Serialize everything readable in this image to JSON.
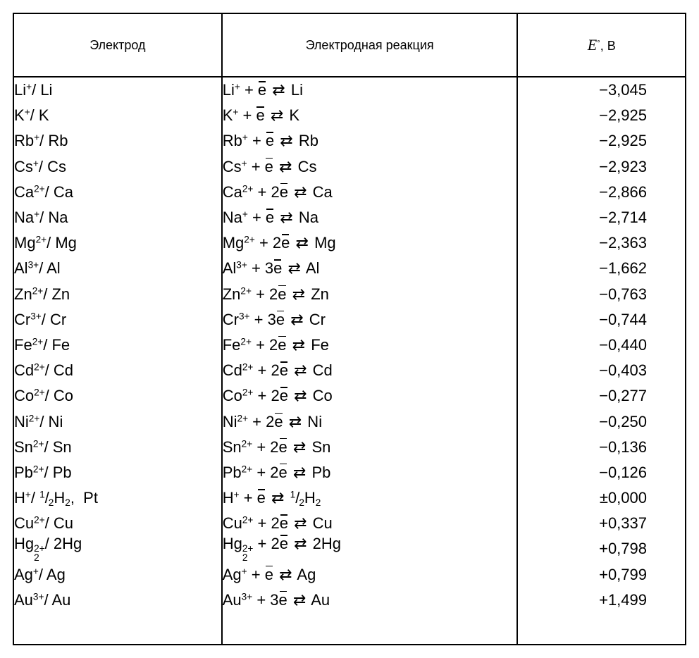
{
  "table": {
    "type": "table",
    "border_color": "#000000",
    "background_color": "#ffffff",
    "text_color": "#000000",
    "font_family": "Arial",
    "header_fontsize_pt": 14,
    "body_fontsize_pt": 16,
    "column_widths_pct": [
      31,
      44,
      25
    ],
    "columns": {
      "electrode": "Электрод",
      "reaction": "Электродная реакция",
      "potential_prefix": "E",
      "potential_suffix": ", В"
    },
    "rows": [
      {
        "electrode": {
          "ion": "Li",
          "charge": "+",
          "metal": "Li"
        },
        "reaction": {
          "ion": "Li",
          "charge": "+",
          "e_coeff": "",
          "product": "Li"
        },
        "potential": "−3,045"
      },
      {
        "electrode": {
          "ion": "K",
          "charge": "+",
          "metal": "K"
        },
        "reaction": {
          "ion": "K",
          "charge": "+",
          "e_coeff": "",
          "product": "K"
        },
        "potential": "−2,925"
      },
      {
        "electrode": {
          "ion": "Rb",
          "charge": "+",
          "metal": "Rb"
        },
        "reaction": {
          "ion": "Rb",
          "charge": "+",
          "e_coeff": "",
          "product": "Rb"
        },
        "potential": "−2,925"
      },
      {
        "electrode": {
          "ion": "Cs",
          "charge": "+",
          "metal": "Cs"
        },
        "reaction": {
          "ion": "Cs",
          "charge": "+",
          "e_coeff": "",
          "product": "Cs"
        },
        "potential": "−2,923"
      },
      {
        "electrode": {
          "ion": "Ca",
          "charge": "2+",
          "metal": "Ca"
        },
        "reaction": {
          "ion": "Ca",
          "charge": "2+",
          "e_coeff": "2",
          "product": "Ca"
        },
        "potential": "−2,866"
      },
      {
        "electrode": {
          "ion": "Na",
          "charge": "+",
          "metal": "Na"
        },
        "reaction": {
          "ion": "Na",
          "charge": "+",
          "e_coeff": "",
          "product": "Na"
        },
        "potential": "−2,714"
      },
      {
        "electrode": {
          "ion": "Mg",
          "charge": "2+",
          "metal": "Mg"
        },
        "reaction": {
          "ion": "Mg",
          "charge": "2+",
          "e_coeff": "2",
          "product": "Mg"
        },
        "potential": "−2,363"
      },
      {
        "electrode": {
          "ion": "Al",
          "charge": "3+",
          "metal": "Al"
        },
        "reaction": {
          "ion": "Al",
          "charge": "3+",
          "e_coeff": "3",
          "product": "Al"
        },
        "potential": "−1,662"
      },
      {
        "electrode": {
          "ion": "Zn",
          "charge": "2+",
          "metal": "Zn"
        },
        "reaction": {
          "ion": "Zn",
          "charge": "2+",
          "e_coeff": "2",
          "product": "Zn"
        },
        "potential": "−0,763"
      },
      {
        "electrode": {
          "ion": "Cr",
          "charge": "3+",
          "metal": "Cr"
        },
        "reaction": {
          "ion": "Cr",
          "charge": "3+",
          "e_coeff": "3",
          "product": "Cr"
        },
        "potential": "−0,744"
      },
      {
        "electrode": {
          "ion": "Fe",
          "charge": "2+",
          "metal": "Fe"
        },
        "reaction": {
          "ion": "Fe",
          "charge": "2+",
          "e_coeff": "2",
          "product": "Fe"
        },
        "potential": "−0,440"
      },
      {
        "electrode": {
          "ion": "Cd",
          "charge": "2+",
          "metal": "Cd"
        },
        "reaction": {
          "ion": "Cd",
          "charge": "2+",
          "e_coeff": "2",
          "product": "Cd"
        },
        "potential": "−0,403"
      },
      {
        "electrode": {
          "ion": "Co",
          "charge": "2+",
          "metal": "Co"
        },
        "reaction": {
          "ion": "Co",
          "charge": "2+",
          "e_coeff": "2",
          "product": "Co"
        },
        "potential": "−0,277"
      },
      {
        "electrode": {
          "ion": "Ni",
          "charge": "2+",
          "metal": "Ni"
        },
        "reaction": {
          "ion": "Ni",
          "charge": "2+",
          "e_coeff": "2",
          "product": "Ni"
        },
        "potential": "−0,250"
      },
      {
        "electrode": {
          "ion": "Sn",
          "charge": "2+",
          "metal": "Sn"
        },
        "reaction": {
          "ion": "Sn",
          "charge": "2+",
          "e_coeff": "2",
          "product": "Sn"
        },
        "potential": "−0,136"
      },
      {
        "electrode": {
          "ion": "Pb",
          "charge": "2+",
          "metal": "Pb"
        },
        "reaction": {
          "ion": "Pb",
          "charge": "2+",
          "e_coeff": "2",
          "product": "Pb"
        },
        "potential": "−0,126"
      },
      {
        "electrode_special": "H_halfH2_Pt",
        "reaction_special": "H_halfH2",
        "potential": "±0,000"
      },
      {
        "electrode": {
          "ion": "Cu",
          "charge": "2+",
          "metal": "Cu"
        },
        "reaction": {
          "ion": "Cu",
          "charge": "2+",
          "e_coeff": "2",
          "product": "Cu"
        },
        "potential": "+0,337"
      },
      {
        "electrode_special": "Hg2_2Hg",
        "reaction_special": "Hg2_2Hg",
        "potential": "+0,798"
      },
      {
        "electrode": {
          "ion": "Ag",
          "charge": "+",
          "metal": "Ag"
        },
        "reaction": {
          "ion": "Ag",
          "charge": "+",
          "e_coeff": "",
          "product": "Ag"
        },
        "potential": "+0,799"
      },
      {
        "electrode": {
          "ion": "Au",
          "charge": "3+",
          "metal": "Au"
        },
        "reaction": {
          "ion": "Au",
          "charge": "3+",
          "e_coeff": "3",
          "product": "Au"
        },
        "potential": "+1,499"
      }
    ]
  }
}
